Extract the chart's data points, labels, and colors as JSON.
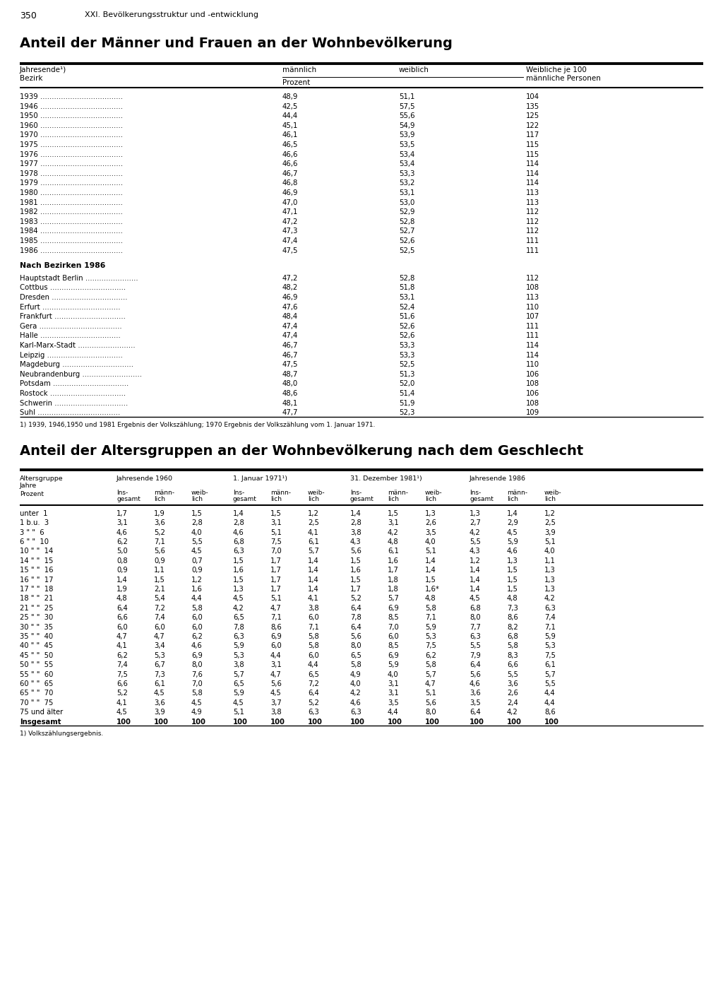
{
  "page_number": "350",
  "page_header": "XXI. Bevölkerungsstruktur und -entwicklung",
  "table1_title": "Anteil der Männer und Frauen an der Wohnbevölkerung",
  "table1_years": [
    [
      "1939",
      "48,9",
      "51,1",
      "104"
    ],
    [
      "1946",
      "42,5",
      "57,5",
      "135"
    ],
    [
      "1950",
      "44,4",
      "55,6",
      "125"
    ],
    [
      "1960",
      "45,1",
      "54,9",
      "122"
    ],
    [
      "1970",
      "46,1",
      "53,9",
      "117"
    ],
    [
      "1975",
      "46,5",
      "53,5",
      "115"
    ],
    [
      "1976",
      "46,6",
      "53,4",
      "115"
    ],
    [
      "1977",
      "46,6",
      "53,4",
      "114"
    ],
    [
      "1978",
      "46,7",
      "53,3",
      "114"
    ],
    [
      "1979",
      "46,8",
      "53,2",
      "114"
    ],
    [
      "1980",
      "46,9",
      "53,1",
      "113"
    ],
    [
      "1981",
      "47,0",
      "53,0",
      "113"
    ],
    [
      "1982",
      "47,1",
      "52,9",
      "112"
    ],
    [
      "1983",
      "47,2",
      "52,8",
      "112"
    ],
    [
      "1984",
      "47,3",
      "52,7",
      "112"
    ],
    [
      "1985",
      "47,4",
      "52,6",
      "111"
    ],
    [
      "1986",
      "47,5",
      "52,5",
      "111"
    ]
  ],
  "table1_bezirke": [
    [
      "Hauptstadt Berlin",
      "47,2",
      "52,8",
      "112"
    ],
    [
      "Cottbus",
      "48,2",
      "51,8",
      "108"
    ],
    [
      "Dresden",
      "46,9",
      "53,1",
      "113"
    ],
    [
      "Erfurt",
      "47,6",
      "52,4",
      "110"
    ],
    [
      "Frankfurt",
      "48,4",
      "51,6",
      "107"
    ],
    [
      "Gera",
      "47,4",
      "52,6",
      "111"
    ],
    [
      "Halle",
      "47,4",
      "52,6",
      "111"
    ],
    [
      "Karl-Marx-Stadt",
      "46,7",
      "53,3",
      "114"
    ],
    [
      "Leipzig",
      "46,7",
      "53,3",
      "114"
    ],
    [
      "Magdeburg",
      "47,5",
      "52,5",
      "110"
    ],
    [
      "Neubrandenburg",
      "48,7",
      "51,3",
      "106"
    ],
    [
      "Potsdam",
      "48,0",
      "52,0",
      "108"
    ],
    [
      "Rostock",
      "48,6",
      "51,4",
      "106"
    ],
    [
      "Schwerin",
      "48,1",
      "51,9",
      "108"
    ],
    [
      "Suhl",
      "47,7",
      "52,3",
      "109"
    ]
  ],
  "table1_footnote": "1) 1939, 1946,1950 und 1981 Ergebnis der Volkszählung; 1970 Ergebnis der Volkszählung vom 1. Januar 1971.",
  "table2_title": "Anteil der Altersgruppen an der Wohnbevölkerung nach dem Geschlecht",
  "table2_rows": [
    [
      "unter  1",
      "1,7",
      "1,9",
      "1,5",
      "1,4",
      "1,5",
      "1,2",
      "1,4",
      "1,5",
      "1,3",
      "1,3",
      "1,4",
      "1,2"
    ],
    [
      "1 b.u.  3",
      "3,1",
      "3,6",
      "2,8",
      "2,8",
      "3,1",
      "2,5",
      "2,8",
      "3,1",
      "2,6",
      "2,7",
      "2,9",
      "2,5"
    ],
    [
      "3 \" \"  6",
      "4,6",
      "5,2",
      "4,0",
      "4,6",
      "5,1",
      "4,1",
      "3,8",
      "4,2",
      "3,5",
      "4,2",
      "4,5",
      "3,9"
    ],
    [
      "6 \" \"  10",
      "6,2",
      "7,1",
      "5,5",
      "6,8",
      "7,5",
      "6,1",
      "4,3",
      "4,8",
      "4,0",
      "5,5",
      "5,9",
      "5,1"
    ],
    [
      "10 \" \"  14",
      "5,0",
      "5,6",
      "4,5",
      "6,3",
      "7,0",
      "5,7",
      "5,6",
      "6,1",
      "5,1",
      "4,3",
      "4,6",
      "4,0"
    ],
    [
      "14 \" \"  15",
      "0,8",
      "0,9",
      "0,7",
      "1,5",
      "1,7",
      "1,4",
      "1,5",
      "1,6",
      "1,4",
      "1,2",
      "1,3",
      "1,1"
    ],
    [
      "15 \" \"  16",
      "0,9",
      "1,1",
      "0,9",
      "1,6",
      "1,7",
      "1,4",
      "1,6",
      "1,7",
      "1,4",
      "1,4",
      "1,5",
      "1,3"
    ],
    [
      "16 \" \"  17",
      "1,4",
      "1,5",
      "1,2",
      "1,5",
      "1,7",
      "1,4",
      "1,5",
      "1,8",
      "1,5",
      "1,4",
      "1,5",
      "1,3"
    ],
    [
      "17 \" \"  18",
      "1,9",
      "2,1",
      "1,6",
      "1,3",
      "1,7",
      "1,4",
      "1,7",
      "1,8",
      "1,6*",
      "1,4",
      "1,5",
      "1,3"
    ],
    [
      "18 \" \"  21",
      "4,8",
      "5,4",
      "4,4",
      "4,5",
      "5,1",
      "4,1",
      "5,2",
      "5,7",
      "4,8",
      "4,5",
      "4,8",
      "4,2"
    ],
    [
      "21 \" \"  25",
      "6,4",
      "7,2",
      "5,8",
      "4,2",
      "4,7",
      "3,8",
      "6,4",
      "6,9",
      "5,8",
      "6,8",
      "7,3",
      "6,3"
    ],
    [
      "25 \" \"  30",
      "6,6",
      "7,4",
      "6,0",
      "6,5",
      "7,1",
      "6,0",
      "7,8",
      "8,5",
      "7,1",
      "8,0",
      "8,6",
      "7,4"
    ],
    [
      "30 \" \"  35",
      "6,0",
      "6,0",
      "6,0",
      "7,8",
      "8,6",
      "7,1",
      "6,4",
      "7,0",
      "5,9",
      "7,7",
      "8,2",
      "7,1"
    ],
    [
      "35 \" \"  40",
      "4,7",
      "4,7",
      "6,2",
      "6,3",
      "6,9",
      "5,8",
      "5,6",
      "6,0",
      "5,3",
      "6,3",
      "6,8",
      "5,9"
    ],
    [
      "40 \" \"  45",
      "4,1",
      "3,4",
      "4,6",
      "5,9",
      "6,0",
      "5,8",
      "8,0",
      "8,5",
      "7,5",
      "5,5",
      "5,8",
      "5,3"
    ],
    [
      "45 \" \"  50",
      "6,2",
      "5,3",
      "6,9",
      "5,3",
      "4,4",
      "6,0",
      "6,5",
      "6,9",
      "6,2",
      "7,9",
      "8,3",
      "7,5"
    ],
    [
      "50 \" \"  55",
      "7,4",
      "6,7",
      "8,0",
      "3,8",
      "3,1",
      "4,4",
      "5,8",
      "5,9",
      "5,8",
      "6,4",
      "6,6",
      "6,1"
    ],
    [
      "55 \" \"  60",
      "7,5",
      "7,3",
      "7,6",
      "5,7",
      "4,7",
      "6,5",
      "4,9",
      "4,0",
      "5,7",
      "5,6",
      "5,5",
      "5,7"
    ],
    [
      "60 \" \"  65",
      "6,6",
      "6,1",
      "7,0",
      "6,5",
      "5,6",
      "7,2",
      "4,0",
      "3,1",
      "4,7",
      "4,6",
      "3,6",
      "5,5"
    ],
    [
      "65 \" \"  70",
      "5,2",
      "4,5",
      "5,8",
      "5,9",
      "4,5",
      "6,4",
      "4,2",
      "3,1",
      "5,1",
      "3,6",
      "2,6",
      "4,4"
    ],
    [
      "70 \" \"  75",
      "4,1",
      "3,6",
      "4,5",
      "4,5",
      "3,7",
      "5,2",
      "4,6",
      "3,5",
      "5,6",
      "3,5",
      "2,4",
      "4,4"
    ],
    [
      "75 und älter",
      "4,5",
      "3,9",
      "4,9",
      "5,1",
      "3,8",
      "6,3",
      "6,3",
      "4,4",
      "8,0",
      "6,4",
      "4,2",
      "8,6"
    ],
    [
      "Insgesamt",
      "100",
      "100",
      "100",
      "100",
      "100",
      "100",
      "100",
      "100",
      "100",
      "100",
      "100",
      "100"
    ]
  ],
  "table2_footnote": "1) Volkszählungsergebnis."
}
